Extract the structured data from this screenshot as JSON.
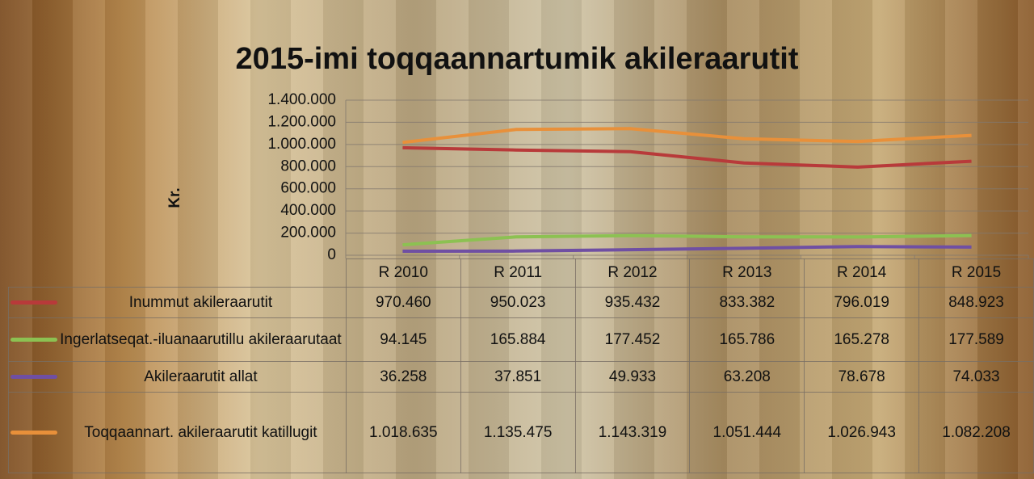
{
  "chart_data": {
    "type": "line",
    "title": "2015-imi toqqaannartumik akileraarutit",
    "y_label": "Kr.",
    "categories": [
      "R 2010",
      "R 2011",
      "R 2012",
      "R 2013",
      "R 2014",
      "R 2015"
    ],
    "ylim": [
      0,
      1400000
    ],
    "yticks": [
      0,
      {
        "value": 200000,
        "label": "200.000"
      },
      {
        "value": 400000,
        "label": "400.000"
      },
      {
        "value": 600000,
        "label": "600.000"
      },
      {
        "value": 800000,
        "label": "800.000"
      },
      {
        "value": 1000000,
        "label": "1.000.000"
      },
      {
        "value": 1200000,
        "label": "1.200.000"
      },
      {
        "value": 1400000,
        "label": "1.400.000"
      }
    ],
    "grid": true,
    "series": [
      {
        "name": "Inummut akileraarutit",
        "color": "#b83a3a",
        "values": [
          970460,
          950023,
          935432,
          833382,
          796019,
          848923
        ],
        "value_labels": [
          "970.460",
          "950.023",
          "935.432",
          "833.382",
          "796.019",
          "848.923"
        ]
      },
      {
        "name": "Ingerlatseqat.-iluanaarutillu akileraarutaat",
        "color": "#8cc152",
        "values": [
          94145,
          165884,
          177452,
          165786,
          165278,
          177589
        ],
        "value_labels": [
          "94.145",
          "165.884",
          "177.452",
          "165.786",
          "165.278",
          "177.589"
        ]
      },
      {
        "name": "Akileraarutit allat",
        "color": "#6f4fa3",
        "values": [
          36258,
          37851,
          49933,
          63208,
          78678,
          74033
        ],
        "value_labels": [
          "36.258",
          "37.851",
          "49.933",
          "63.208",
          "78.678",
          "74.033"
        ]
      },
      {
        "name": "Toqqaannart. akileraarutit katillugit",
        "color": "#e8903a",
        "values": [
          1018635,
          1135475,
          1143319,
          1051444,
          1026943,
          1082208
        ],
        "value_labels": [
          "1.018.635",
          "1.135.475",
          "1.143.319",
          "1.051.444",
          "1.026.943",
          "1.082.208"
        ]
      }
    ]
  }
}
